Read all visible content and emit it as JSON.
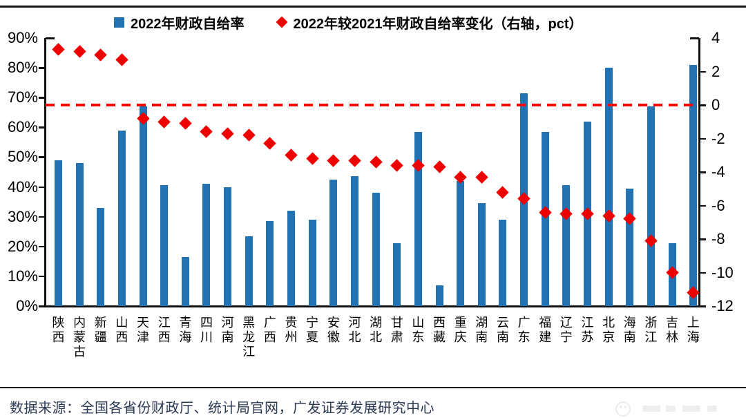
{
  "legend": {
    "bars_label": "2022年财政自给率",
    "diamonds_label": "2022年较2021年财政自给率变化（右轴，pct）"
  },
  "footer": {
    "source_note": "数据来源：全国各省份财政厅、统计局官网，广发证券发展研究中心"
  },
  "colors": {
    "bar": "#2173B3",
    "marker": "#EE0000",
    "dashed_line": "#FF0000",
    "axis": "#111111",
    "source_text": "#2b3a55"
  },
  "chart_data": {
    "type": "bar",
    "title": "",
    "legend_position": "top",
    "grid": false,
    "categories": [
      "陕西",
      "内蒙古",
      "新疆",
      "山西",
      "天津",
      "江西",
      "青海",
      "四川",
      "河南",
      "黑龙江",
      "广西",
      "贵州",
      "宁夏",
      "安徽",
      "河北",
      "湖北",
      "甘肃",
      "山东",
      "西藏",
      "重庆",
      "湖南",
      "云南",
      "广东",
      "福建",
      "辽宁",
      "江苏",
      "北京",
      "海南",
      "浙江",
      "吉林",
      "上海"
    ],
    "series": [
      {
        "name": "2022年财政自给率",
        "type": "bar",
        "axis": "left",
        "unit": "%",
        "values": [
          49,
          48,
          33,
          59,
          67,
          40.5,
          16.5,
          41,
          40,
          23.5,
          28.5,
          32,
          29,
          42.5,
          43.5,
          38,
          21,
          58.5,
          7,
          42,
          34.5,
          29,
          71.5,
          58.5,
          40.5,
          62,
          80,
          39.5,
          67,
          21,
          81
        ]
      },
      {
        "name": "2022年较2021年财政自给率变化（右轴，pct）",
        "type": "scatter",
        "marker": "diamond",
        "axis": "right",
        "unit": "pct",
        "values": [
          3.3,
          3.2,
          3.0,
          2.7,
          -0.8,
          -1.0,
          -1.1,
          -1.6,
          -1.7,
          -1.8,
          -2.3,
          -3.0,
          -3.2,
          -3.3,
          -3.3,
          -3.4,
          -3.6,
          -3.6,
          -3.7,
          -4.3,
          -4.3,
          -5.2,
          -5.6,
          -6.4,
          -6.5,
          -6.5,
          -6.6,
          -6.8,
          -8.1,
          -10.0,
          -11.2
        ]
      }
    ],
    "left_axis": {
      "min": 0,
      "max": 90,
      "step": 10,
      "tick_labels": [
        "0%",
        "10%",
        "20%",
        "30%",
        "40%",
        "50%",
        "60%",
        "70%",
        "80%",
        "90%"
      ]
    },
    "right_axis": {
      "min": -12,
      "max": 4,
      "step": 2,
      "tick_labels": [
        "4",
        "2",
        "0",
        "-2",
        "-4",
        "-6",
        "-8",
        "-10",
        "-12"
      ]
    },
    "reference_line": {
      "value": 0,
      "axis": "right",
      "style": "dashed",
      "color": "#FF0000"
    }
  }
}
